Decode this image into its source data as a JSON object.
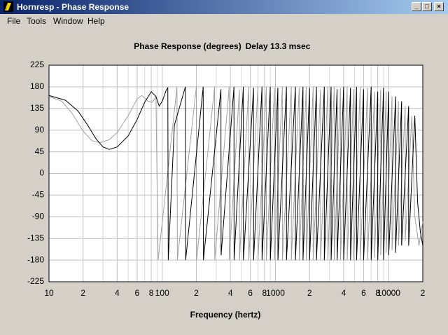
{
  "window": {
    "title": "Hornresp - Phase Response"
  },
  "menu": [
    "File",
    "Tools",
    "Window",
    "Help"
  ],
  "chart_data": {
    "type": "line",
    "title": "Phase Response (degrees)",
    "subtitle": "Delay 13.3 msec",
    "xlabel": "Frequency (hertz)",
    "xscale": "log",
    "xlim": [
      10,
      20000
    ],
    "xticks": [
      10,
      {
        "value": 20,
        "label": "2"
      },
      {
        "value": 40,
        "label": "4"
      },
      {
        "value": 60,
        "label": "6"
      },
      {
        "value": 80,
        "label": "8"
      },
      100,
      {
        "value": 200,
        "label": "2"
      },
      {
        "value": 400,
        "label": "4"
      },
      {
        "value": 600,
        "label": "6"
      },
      {
        "value": 800,
        "label": "8"
      },
      1000,
      {
        "value": 2000,
        "label": "2"
      },
      {
        "value": 4000,
        "label": "4"
      },
      {
        "value": 6000,
        "label": "6"
      },
      {
        "value": 8000,
        "label": "8"
      },
      10000,
      {
        "value": 20000,
        "label": "2"
      }
    ],
    "xgrid_minor": [
      30,
      50,
      70,
      90,
      300,
      500,
      700,
      900,
      3000,
      5000,
      7000,
      9000
    ],
    "ylim": [
      -225,
      225
    ],
    "yticks": [
      225,
      180,
      135,
      90,
      45,
      0,
      -45,
      -90,
      -135,
      -180,
      -225
    ],
    "grid": true,
    "series": [
      {
        "color": "#000000",
        "x": [
          10,
          14,
          18,
          22,
          26,
          30,
          34,
          40,
          50,
          60,
          70,
          80,
          88,
          94,
          100,
          108,
          112,
          113,
          128,
          160,
          161,
          230,
          231,
          330,
          331,
          430,
          431,
          520,
          521,
          640,
          641,
          760,
          761,
          900,
          901,
          1050,
          1051,
          1250,
          1251,
          1500,
          1501,
          1750,
          1751,
          2000,
          2001,
          2300,
          2301,
          2700,
          2701,
          3100,
          3101,
          3500,
          3501,
          4000,
          4001,
          4600,
          4601,
          5200,
          5201,
          6000,
          6001,
          7000,
          7001,
          8000,
          8001,
          9000,
          9001,
          10000,
          10001,
          11500,
          11501,
          13000,
          13001,
          15000,
          15001,
          17000,
          18000,
          19000,
          20000
        ],
        "values": [
          162,
          152,
          130,
          100,
          72,
          55,
          50,
          55,
          78,
          112,
          148,
          170,
          160,
          140,
          150,
          172,
          178,
          -180,
          100,
          180,
          -180,
          180,
          -180,
          175,
          -170,
          180,
          -180,
          180,
          -180,
          178,
          -180,
          180,
          -180,
          180,
          -180,
          178,
          -180,
          180,
          -180,
          180,
          -180,
          180,
          -180,
          178,
          -180,
          180,
          -180,
          180,
          -180,
          180,
          -180,
          175,
          -180,
          180,
          -180,
          178,
          -180,
          180,
          -180,
          175,
          -180,
          180,
          -180,
          170,
          -180,
          178,
          -180,
          170,
          -170,
          160,
          -165,
          150,
          -150,
          140,
          -150,
          120,
          -60,
          -120,
          -150
        ]
      },
      {
        "color": "#a0a0a0",
        "x": [
          10,
          13,
          16,
          20,
          24,
          28,
          34,
          40,
          50,
          60,
          66,
          75,
          82,
          88,
          92,
          135,
          136,
          200,
          201,
          290,
          291,
          390,
          391,
          480,
          481,
          580,
          581,
          700,
          701,
          830,
          831,
          980,
          981,
          1150,
          1151,
          1380,
          1381,
          1620,
          1621,
          1870,
          1871,
          2150,
          2151,
          2500,
          2501,
          2900,
          2901,
          3300,
          3301,
          3750,
          3751,
          4300,
          4301,
          4900,
          4901,
          5600,
          5601,
          6500,
          6501,
          7500,
          7501,
          8500,
          8501,
          9500,
          9501,
          10700,
          10701,
          12200,
          12201,
          14000,
          14001,
          16000,
          17000,
          18500,
          20000
        ],
        "values": [
          160,
          150,
          125,
          88,
          68,
          64,
          70,
          85,
          120,
          155,
          162,
          150,
          148,
          160,
          -180,
          180,
          -180,
          180,
          -180,
          180,
          -180,
          180,
          -180,
          175,
          -180,
          180,
          -180,
          180,
          -180,
          180,
          -180,
          178,
          -180,
          180,
          -180,
          180,
          -180,
          178,
          -180,
          180,
          -180,
          180,
          -180,
          175,
          -180,
          180,
          -180,
          180,
          -180,
          178,
          -180,
          180,
          -180,
          175,
          -180,
          180,
          -180,
          178,
          -180,
          170,
          -175,
          175,
          -170,
          170,
          -165,
          160,
          -160,
          150,
          -150,
          140,
          -140,
          120,
          -90,
          -150,
          -100
        ]
      }
    ]
  }
}
